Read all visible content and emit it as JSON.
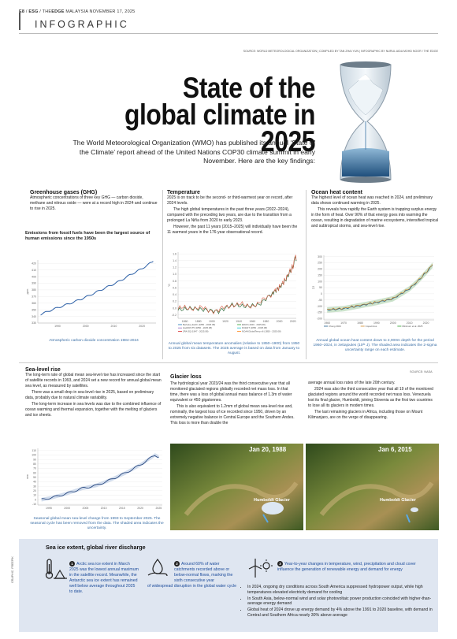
{
  "header": {
    "page": "E8",
    "section": "ESG",
    "publication_prefix": "THE",
    "publication": "EDGE",
    "publication_suffix": "MALAYSIA",
    "date": "NOVEMBER 17, 2025",
    "section_title": "INFOGRAPHIC"
  },
  "source_line": "SOURCE: WORLD METEOROLOGICAL ORGANIZATION | COMPILED BY TAN ZHAI YUN | INFOGRAPHIC BY NURUL AIDA MOHD NOOR / THE EDGE",
  "title_line1": "State of the",
  "title_line2": "global climate in 2025",
  "intro": "The World Meteorological Organization (WMO) has published its annual ‘State of the Climate’ report ahead of the United Nations COP30 climate summit in early November. Here are the key findings:",
  "ghg": {
    "heading": "Greenhouse gases (GHG)",
    "body": "Atmospheric concentrations of three key GHG — carbon dioxide, methane and nitrous oxide — were at a record high in 2024 and continue to rise in 2025.",
    "subhead": "Emissions from fossil fuels have been the largest source of human emissions since the 1950s",
    "caption": "Atmospheric carbon dioxide concentration 1984-2024"
  },
  "temperature": {
    "heading": "Temperature",
    "p1": "2025 is on track to be the second- or third-warmest year on record, after 2024 levels.",
    "p2": "The high global temperatures in the past three years (2022–2024), compared with the preceding two years, are due to the transition from a prolonged La Niña from 2020 to early 2023.",
    "p3": "However, the past 11 years (2015–2025) will individually have been the 11 warmest years in the 176-year observational record.",
    "caption": "Annual global mean temperature anomalies (relative to 1850–1900) from 1850 to 2025 from six datasets. The 2025 average is based on data from January to August."
  },
  "ocean": {
    "heading": "Ocean heat content",
    "p1": "The highest level of ocean heat was reached in 2024, and preliminary data shows continued warming in 2025.",
    "p2": "This reveals how rapidly the Earth system is trapping surplus energy in the form of heat. Over 90% of that energy goes into warming the ocean, resulting in degradation of marine ecosystems, intensified tropical and subtropical storms, and sea-level rise.",
    "caption": "Annual global ocean heat content down to 2,000m depth for the period 1960–2024, in zettajoules (10²¹ J). The shaded area indicates the 2-sigma uncertainty range on each estimate."
  },
  "sealevel": {
    "heading": "Sea-level rise",
    "p1": "The long-term rate of global mean sea-level rise has increased since the start of satellite records in 1993, and 2024 set a new record for annual global mean sea level, as measured by satellites.",
    "p2": "There was a small drop in sea-level rise in 2025, based on preliminary data, probably due to natural climate variability.",
    "p3": "The long-term increase in sea levels was due to the combined influence of ocean warming and thermal expansion, together with the melting of glaciers and ice sheets.",
    "caption": "Seasonal global mean sea-level change from 1993 to September 2025. The seasonal cycle has been removed from the data. The shaded area indicates the uncertainty."
  },
  "glacier": {
    "heading": "Glacier loss",
    "source": "SOURCE: NASA",
    "p1": "The hydrological year 2023/24 was the third consecutive year that all monitored glaciated regions globally recorded net mass loss. In that time, there was a loss of global annual mass balance of 1.3m of water equivalent or 450 gigatonnes.",
    "p2": "This is also equivalent to 1.2mm of global mean sea-level rise and, nominally, the largest loss of ice recorded since 1950, driven by an extremely negative balance in Central Europe and the Southern Andes. This loss is more than double the",
    "p3": "average annual loss rates of the late 20th century.",
    "p4": "2024 was also the third consecutive year that all 19 of the monitored glaciated regions around the world recorded net mass loss. Venezuela lost its final glacier, Humboldt, joining Slovenia as the first two countries to lose all its glaciers in modern times.",
    "p5": "The last remaining glaciers in Africa, including those on Mount Kilimanjaro, are on the verge of disappearing.",
    "photo1_date": "Jan 20, 1988",
    "photo2_date": "Jan 6, 2015",
    "photo_label": "Humboldt Glacier"
  },
  "seaice": {
    "heading": "Sea ice extent, global river discharge",
    "item1": "Arctic sea ice extent in March 2025 was the lowest annual maximum in the satellite record. Meanwhile, the Antarctic sea ice extent has remained well below average throughout 2025 to date.",
    "item2a": "Around 60% of water catchments recorded above or below-normal flows, marking the sixth consecutive year",
    "item2b": "of widespread disruption in the global water cycle",
    "item3": "Year-to-year changes in temperature, wind, precipitation and cloud cover influence the generation of renewable energy and demand for energy",
    "bullets": [
      "In 2024, ongoing dry conditions across South America suppressed hydropower output, while high temperatures elevated electricity demand for cooling",
      "In South Asia, below-normal wind and solar photovoltaic power production coincided with higher-than-average energy demand",
      "Global heat of 2024 drove up energy demand by 4% above the 1991 to 2020 baseline, with demand in Central and Southern Africa nearly 30% above average"
    ]
  },
  "credit": "GRAPHIC: FREEPIK",
  "chart_data": [
    {
      "type": "line",
      "title": "",
      "ylabel": "ppm",
      "x": [
        1984,
        1988,
        1992,
        1996,
        2000,
        2004,
        2008,
        2012,
        2016,
        2020,
        2024
      ],
      "values": [
        343,
        350,
        356,
        362,
        369,
        377,
        385,
        393,
        403,
        412,
        423
      ],
      "xticks": [
        "1990",
        "2000",
        "2010",
        "2020"
      ],
      "yticks": [
        "330",
        "340",
        "350",
        "360",
        "370",
        "380",
        "390",
        "400",
        "410",
        "420"
      ],
      "ylim": [
        330,
        425
      ]
    },
    {
      "type": "line",
      "ylabel": "°C",
      "xticks": [
        "1860",
        "1880",
        "1900",
        "1920",
        "1940",
        "1960",
        "1980",
        "2000",
        "2020"
      ],
      "yticks": [
        "-0.2",
        "0.0",
        "0.2",
        "0.4",
        "0.6",
        "0.8",
        "1.0",
        "1.2",
        "1.4",
        "1.6"
      ],
      "ylim": [
        -0.3,
        1.65
      ],
      "legend": [
        "Berkeley Earth (1850 - 2025.08)",
        "ERA5 (1940 - 2025.08)",
        "HadCRUT5 (1850 - 2025.08)",
        "DCENT (1850 - 2025.08)",
        "JRA-3Q (1947 - 2025.08)",
        "NOAAGlobalTemp v6 (1850 - 2025.08)"
      ],
      "x": [
        1850,
        1870,
        1890,
        1910,
        1930,
        1950,
        1970,
        1990,
        2000,
        2010,
        2015,
        2020,
        2024,
        2025
      ],
      "values": [
        -0.05,
        0.0,
        -0.05,
        -0.1,
        0.1,
        0.05,
        0.1,
        0.45,
        0.6,
        0.85,
        1.05,
        1.2,
        1.55,
        1.42
      ]
    },
    {
      "type": "line",
      "ylabel": "ZJ",
      "xticks": [
        "1960",
        "1970",
        "1980",
        "1990",
        "2000",
        "2010",
        "2020"
      ],
      "yticks": [
        "-200",
        "-150",
        "-100",
        "-50",
        "0",
        "50",
        "100",
        "150",
        "200",
        "250",
        "300"
      ],
      "ylim": [
        -210,
        310
      ],
      "legend": [
        "Cheng 2024",
        "Copernicus",
        "Minimum et al. 2025"
      ],
      "x": [
        1960,
        1970,
        1980,
        1990,
        2000,
        2010,
        2015,
        2020,
        2024
      ],
      "values": [
        -130,
        -120,
        -95,
        -70,
        -40,
        40,
        100,
        170,
        230
      ]
    },
    {
      "type": "line",
      "ylabel": "mm",
      "xticks": [
        "1995",
        "2000",
        "2005",
        "2010",
        "2015",
        "2020",
        "2025"
      ],
      "yticks": [
        "-10",
        "0",
        "10",
        "20",
        "30",
        "40",
        "50",
        "60",
        "70",
        "80",
        "90",
        "100",
        "110"
      ],
      "ylim": [
        -12,
        115
      ],
      "x": [
        1993,
        1996,
        2000,
        2004,
        2008,
        2012,
        2016,
        2020,
        2024,
        2025
      ],
      "values": [
        0,
        5,
        14,
        25,
        32,
        45,
        60,
        78,
        100,
        96
      ]
    }
  ]
}
